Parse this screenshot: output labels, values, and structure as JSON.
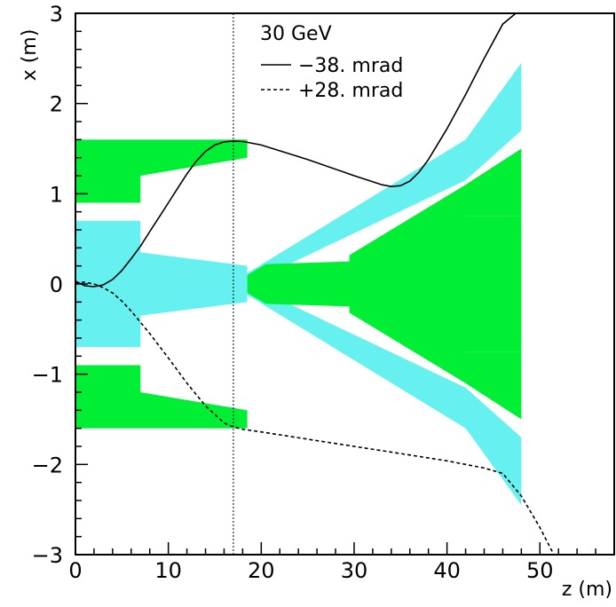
{
  "chart_data": {
    "type": "line",
    "title": "",
    "xlabel": "z (m)",
    "ylabel": "x (m)",
    "xlim": [
      0,
      58
    ],
    "ylim": [
      -3,
      3
    ],
    "grid": false,
    "legend_position": "top-right",
    "legend_title": "30 GeV",
    "x_ticks": [
      0,
      10,
      20,
      30,
      40,
      50
    ],
    "x_tick_labels": [
      "0",
      "10",
      "20",
      "30",
      "40",
      "50"
    ],
    "y_ticks": [
      -3,
      -2,
      -1,
      0,
      1,
      2,
      3
    ],
    "y_tick_labels": [
      "−3",
      "−2",
      "−1",
      "0",
      "1",
      "2",
      "3"
    ],
    "vertical_reference_line": {
      "x": 17,
      "style": "dotted"
    },
    "series": [
      {
        "name": "−38. mrad",
        "style": "solid",
        "color": "#000000",
        "x": [
          0,
          1,
          2,
          3,
          4,
          5,
          6,
          7,
          8,
          9,
          10,
          11,
          12,
          13,
          14,
          15,
          16,
          17,
          18,
          20,
          25,
          30,
          33,
          34,
          35,
          36,
          37,
          38,
          40,
          42,
          44,
          46,
          47.4
        ],
        "y": [
          0.03,
          -0.02,
          -0.03,
          -0.01,
          0.05,
          0.15,
          0.28,
          0.42,
          0.58,
          0.74,
          0.9,
          1.06,
          1.22,
          1.36,
          1.47,
          1.54,
          1.575,
          1.585,
          1.58,
          1.54,
          1.38,
          1.2,
          1.1,
          1.08,
          1.09,
          1.14,
          1.24,
          1.38,
          1.72,
          2.1,
          2.5,
          2.88,
          3.0
        ]
      },
      {
        "name": "+28. mrad",
        "style": "dashed",
        "color": "#000000",
        "x": [
          0,
          1,
          2,
          3,
          4,
          5,
          6,
          8,
          10,
          12,
          14,
          16,
          17,
          18,
          20,
          25,
          30,
          35,
          40,
          44,
          46,
          48,
          50,
          52
        ],
        "y": [
          0.01,
          0.02,
          0.0,
          -0.04,
          -0.1,
          -0.19,
          -0.3,
          -0.55,
          -0.82,
          -1.1,
          -1.35,
          -1.54,
          -1.585,
          -1.61,
          -1.64,
          -1.72,
          -1.8,
          -1.88,
          -1.96,
          -2.04,
          -2.1,
          -2.35,
          -2.7,
          -3.1
        ]
      }
    ],
    "bands": [
      {
        "color": "#00ee33",
        "z": [
          0,
          7,
          7,
          18.5
        ],
        "upper": [
          1.6,
          1.6,
          1.6,
          1.6
        ],
        "lower": [
          0.9,
          0.9,
          1.2,
          1.4
        ]
      },
      {
        "color": "#00ee33",
        "z": [
          0,
          7,
          7,
          18.5
        ],
        "upper": [
          -0.9,
          -0.9,
          -1.2,
          -1.4
        ],
        "lower": [
          -1.6,
          -1.6,
          -1.6,
          -1.6
        ]
      },
      {
        "color": "#66f0f0",
        "z": [
          0,
          7,
          7,
          18.5
        ],
        "upper": [
          0.7,
          0.7,
          0.35,
          0.2
        ],
        "lower": [
          -0.7,
          -0.7,
          -0.35,
          -0.2
        ]
      },
      {
        "color": "#66f0f0",
        "z": [
          18.5,
          42,
          48
        ],
        "upper": [
          0.12,
          1.6,
          2.45
        ],
        "lower": [
          0.0,
          1.15,
          1.7
        ]
      },
      {
        "color": "#66f0f0",
        "z": [
          18.5,
          42,
          48
        ],
        "upper": [
          0.0,
          -1.15,
          -1.7
        ],
        "lower": [
          -0.12,
          -1.6,
          -2.45
        ]
      },
      {
        "color": "#00ee33",
        "z": [
          18.5,
          20.5,
          29.5,
          29.5,
          42,
          48
        ],
        "upper": [
          0.1,
          0.22,
          0.25,
          0.32,
          0.75,
          0.75
        ],
        "lower": [
          -0.1,
          -0.22,
          -0.25,
          -0.32,
          -0.75,
          -0.75
        ]
      },
      {
        "color": "#00ee33",
        "z": [
          29.5,
          42,
          48
        ],
        "upper": [
          0.32,
          1.1,
          1.5
        ],
        "lower": [
          0.07,
          0.75,
          0.75
        ]
      },
      {
        "color": "#00ee33",
        "z": [
          29.5,
          42,
          48
        ],
        "upper": [
          -0.07,
          -0.75,
          -0.75
        ],
        "lower": [
          -0.32,
          -1.1,
          -1.5
        ]
      }
    ]
  }
}
